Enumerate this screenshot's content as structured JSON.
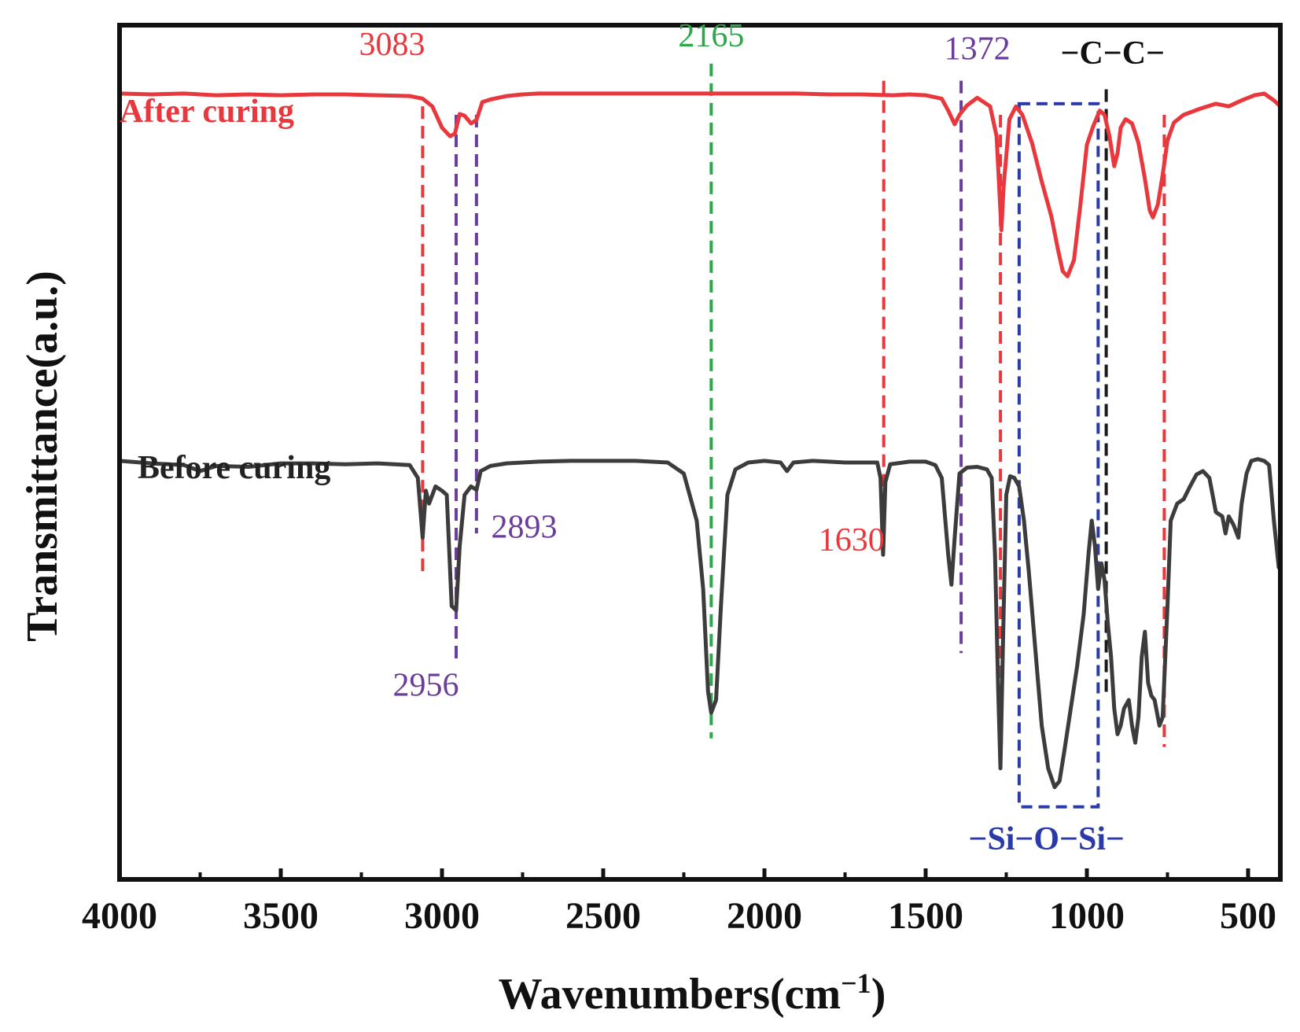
{
  "chart_data": {
    "type": "line",
    "xlabel_main": "Wavenumbers(cm",
    "xlabel_sup": "−1",
    "xlabel_close": ")",
    "ylabel": "Transmittance(a.u.)",
    "xlim": [
      4000,
      400
    ],
    "x_reversed": true,
    "y_axis_ticks_shown": false,
    "grid": false,
    "xticks": [
      4000,
      3500,
      3000,
      2500,
      2000,
      1500,
      1000,
      500
    ],
    "series": [
      {
        "name": "After curing",
        "color": "#e8383d",
        "baseline": 0.92,
        "points": [
          [
            4000,
            0.92
          ],
          [
            3900,
            0.919
          ],
          [
            3800,
            0.92
          ],
          [
            3700,
            0.918
          ],
          [
            3600,
            0.919
          ],
          [
            3500,
            0.918
          ],
          [
            3400,
            0.919
          ],
          [
            3300,
            0.919
          ],
          [
            3200,
            0.918
          ],
          [
            3100,
            0.917
          ],
          [
            3060,
            0.914
          ],
          [
            3030,
            0.905
          ],
          [
            3000,
            0.88
          ],
          [
            2975,
            0.87
          ],
          [
            2960,
            0.873
          ],
          [
            2945,
            0.896
          ],
          [
            2930,
            0.894
          ],
          [
            2910,
            0.885
          ],
          [
            2893,
            0.889
          ],
          [
            2875,
            0.91
          ],
          [
            2850,
            0.913
          ],
          [
            2800,
            0.917
          ],
          [
            2750,
            0.919
          ],
          [
            2700,
            0.92
          ],
          [
            2600,
            0.92
          ],
          [
            2500,
            0.92
          ],
          [
            2400,
            0.92
          ],
          [
            2300,
            0.92
          ],
          [
            2200,
            0.92
          ],
          [
            2100,
            0.92
          ],
          [
            2000,
            0.92
          ],
          [
            1900,
            0.92
          ],
          [
            1800,
            0.919
          ],
          [
            1700,
            0.919
          ],
          [
            1600,
            0.918
          ],
          [
            1550,
            0.919
          ],
          [
            1500,
            0.918
          ],
          [
            1450,
            0.914
          ],
          [
            1430,
            0.9
          ],
          [
            1410,
            0.884
          ],
          [
            1395,
            0.895
          ],
          [
            1372,
            0.906
          ],
          [
            1340,
            0.915
          ],
          [
            1300,
            0.905
          ],
          [
            1280,
            0.87
          ],
          [
            1265,
            0.76
          ],
          [
            1258,
            0.812
          ],
          [
            1240,
            0.89
          ],
          [
            1220,
            0.905
          ],
          [
            1200,
            0.895
          ],
          [
            1170,
            0.862
          ],
          [
            1140,
            0.817
          ],
          [
            1110,
            0.776
          ],
          [
            1090,
            0.738
          ],
          [
            1075,
            0.712
          ],
          [
            1060,
            0.706
          ],
          [
            1040,
            0.725
          ],
          [
            1020,
            0.79
          ],
          [
            1000,
            0.86
          ],
          [
            980,
            0.882
          ],
          [
            960,
            0.9
          ],
          [
            945,
            0.895
          ],
          [
            930,
            0.87
          ],
          [
            915,
            0.835
          ],
          [
            905,
            0.85
          ],
          [
            895,
            0.88
          ],
          [
            880,
            0.89
          ],
          [
            860,
            0.885
          ],
          [
            840,
            0.862
          ],
          [
            820,
            0.82
          ],
          [
            805,
            0.783
          ],
          [
            795,
            0.775
          ],
          [
            780,
            0.79
          ],
          [
            765,
            0.825
          ],
          [
            750,
            0.865
          ],
          [
            730,
            0.886
          ],
          [
            700,
            0.895
          ],
          [
            650,
            0.902
          ],
          [
            600,
            0.908
          ],
          [
            560,
            0.905
          ],
          [
            520,
            0.912
          ],
          [
            480,
            0.918
          ],
          [
            450,
            0.92
          ],
          [
            420,
            0.912
          ],
          [
            400,
            0.905
          ]
        ]
      },
      {
        "name": "Before curing",
        "color": "#3c3c3c",
        "baseline": 0.49,
        "points": [
          [
            4000,
            0.49
          ],
          [
            3900,
            0.487
          ],
          [
            3800,
            0.485
          ],
          [
            3750,
            0.478
          ],
          [
            3700,
            0.484
          ],
          [
            3600,
            0.483
          ],
          [
            3500,
            0.487
          ],
          [
            3400,
            0.487
          ],
          [
            3300,
            0.486
          ],
          [
            3200,
            0.487
          ],
          [
            3100,
            0.485
          ],
          [
            3075,
            0.47
          ],
          [
            3060,
            0.4
          ],
          [
            3050,
            0.455
          ],
          [
            3040,
            0.44
          ],
          [
            3020,
            0.46
          ],
          [
            3000,
            0.455
          ],
          [
            2985,
            0.45
          ],
          [
            2970,
            0.32
          ],
          [
            2956,
            0.315
          ],
          [
            2945,
            0.39
          ],
          [
            2930,
            0.45
          ],
          [
            2910,
            0.46
          ],
          [
            2893,
            0.456
          ],
          [
            2880,
            0.478
          ],
          [
            2850,
            0.484
          ],
          [
            2800,
            0.487
          ],
          [
            2700,
            0.489
          ],
          [
            2600,
            0.49
          ],
          [
            2500,
            0.49
          ],
          [
            2400,
            0.49
          ],
          [
            2300,
            0.488
          ],
          [
            2250,
            0.475
          ],
          [
            2210,
            0.42
          ],
          [
            2190,
            0.34
          ],
          [
            2175,
            0.22
          ],
          [
            2165,
            0.195
          ],
          [
            2150,
            0.21
          ],
          [
            2135,
            0.32
          ],
          [
            2115,
            0.45
          ],
          [
            2090,
            0.48
          ],
          [
            2050,
            0.488
          ],
          [
            2000,
            0.49
          ],
          [
            1950,
            0.488
          ],
          [
            1930,
            0.478
          ],
          [
            1910,
            0.488
          ],
          [
            1850,
            0.49
          ],
          [
            1800,
            0.489
          ],
          [
            1750,
            0.488
          ],
          [
            1700,
            0.488
          ],
          [
            1650,
            0.488
          ],
          [
            1640,
            0.47
          ],
          [
            1632,
            0.38
          ],
          [
            1625,
            0.465
          ],
          [
            1610,
            0.486
          ],
          [
            1550,
            0.489
          ],
          [
            1500,
            0.489
          ],
          [
            1470,
            0.485
          ],
          [
            1450,
            0.47
          ],
          [
            1430,
            0.38
          ],
          [
            1420,
            0.345
          ],
          [
            1410,
            0.4
          ],
          [
            1395,
            0.475
          ],
          [
            1372,
            0.482
          ],
          [
            1340,
            0.483
          ],
          [
            1310,
            0.48
          ],
          [
            1295,
            0.47
          ],
          [
            1285,
            0.38
          ],
          [
            1275,
            0.22
          ],
          [
            1268,
            0.13
          ],
          [
            1260,
            0.28
          ],
          [
            1250,
            0.45
          ],
          [
            1238,
            0.472
          ],
          [
            1225,
            0.47
          ],
          [
            1210,
            0.46
          ],
          [
            1195,
            0.42
          ],
          [
            1180,
            0.36
          ],
          [
            1160,
            0.27
          ],
          [
            1140,
            0.18
          ],
          [
            1120,
            0.13
          ],
          [
            1100,
            0.108
          ],
          [
            1085,
            0.115
          ],
          [
            1070,
            0.15
          ],
          [
            1050,
            0.2
          ],
          [
            1030,
            0.25
          ],
          [
            1010,
            0.31
          ],
          [
            995,
            0.38
          ],
          [
            985,
            0.42
          ],
          [
            975,
            0.39
          ],
          [
            965,
            0.34
          ],
          [
            955,
            0.37
          ],
          [
            945,
            0.35
          ],
          [
            935,
            0.3
          ],
          [
            925,
            0.26
          ],
          [
            915,
            0.2
          ],
          [
            905,
            0.17
          ],
          [
            895,
            0.18
          ],
          [
            885,
            0.2
          ],
          [
            870,
            0.21
          ],
          [
            860,
            0.18
          ],
          [
            850,
            0.16
          ],
          [
            840,
            0.19
          ],
          [
            830,
            0.26
          ],
          [
            820,
            0.29
          ],
          [
            810,
            0.23
          ],
          [
            800,
            0.215
          ],
          [
            790,
            0.21
          ],
          [
            775,
            0.18
          ],
          [
            765,
            0.19
          ],
          [
            750,
            0.32
          ],
          [
            740,
            0.42
          ],
          [
            720,
            0.44
          ],
          [
            700,
            0.445
          ],
          [
            680,
            0.46
          ],
          [
            660,
            0.474
          ],
          [
            640,
            0.478
          ],
          [
            620,
            0.47
          ],
          [
            600,
            0.43
          ],
          [
            580,
            0.425
          ],
          [
            570,
            0.405
          ],
          [
            560,
            0.425
          ],
          [
            545,
            0.415
          ],
          [
            530,
            0.4
          ],
          [
            520,
            0.44
          ],
          [
            505,
            0.475
          ],
          [
            490,
            0.49
          ],
          [
            470,
            0.492
          ],
          [
            450,
            0.49
          ],
          [
            435,
            0.485
          ],
          [
            420,
            0.42
          ],
          [
            405,
            0.365
          ],
          [
            400,
            0.38
          ]
        ]
      }
    ],
    "series_labels": [
      {
        "text": "After curing",
        "color": "#e8383d"
      },
      {
        "text": "Before curing",
        "color": "#222222"
      }
    ],
    "reference_lines": [
      {
        "x": 3060,
        "color": "#e8383d",
        "y_top": 0.905,
        "y_bottom": 0.355
      },
      {
        "x": 2956,
        "color": "#6a3d9a",
        "y_top": 0.895,
        "y_bottom": 0.255
      },
      {
        "x": 2893,
        "color": "#6a3d9a",
        "y_top": 0.895,
        "y_bottom": 0.405
      },
      {
        "x": 2165,
        "color": "#2aa84a",
        "y_top": 0.955,
        "y_bottom": 0.165
      },
      {
        "x": 1630,
        "color": "#e8383d",
        "y_top": 0.935,
        "y_bottom": 0.395
      },
      {
        "x": 1390,
        "color": "#6a3d9a",
        "y_top": 0.935,
        "y_bottom": 0.265
      },
      {
        "x": 1268,
        "color": "#e8383d",
        "y_top": 0.895,
        "y_bottom": 0.205
      },
      {
        "x": 940,
        "color": "#1a1a1a",
        "y_top": 0.925,
        "y_bottom": 0.215
      },
      {
        "x": 760,
        "color": "#e8383d",
        "y_top": 0.895,
        "y_bottom": 0.155
      }
    ],
    "annotations": [
      {
        "text": "3083",
        "color": "#e8383d",
        "x": 3155,
        "y": 0.965,
        "weight": "normal"
      },
      {
        "text": "2165",
        "color": "#2aa84a",
        "x": 2165,
        "y": 0.975,
        "weight": "normal"
      },
      {
        "text": "1372",
        "color": "#6a3d9a",
        "x": 1340,
        "y": 0.96,
        "weight": "normal"
      },
      {
        "text": "2956",
        "color": "#6a3d9a",
        "x": 3050,
        "y": 0.215,
        "weight": "normal"
      },
      {
        "text": "2893",
        "color": "#6a3d9a",
        "x": 2745,
        "y": 0.4,
        "weight": "normal"
      },
      {
        "text": "1630",
        "color": "#e8383d",
        "x": 1730,
        "y": 0.385,
        "weight": "normal"
      },
      {
        "text": "−C−C−",
        "color": "#111111",
        "x": 920,
        "y": 0.955,
        "weight": "bold"
      },
      {
        "text": "−Si−O−Si−",
        "color": "#2a3aa8",
        "x": 1125,
        "y": 0.035,
        "weight": "bold"
      }
    ],
    "highlight_box": {
      "x_from": 1210,
      "x_to": 965,
      "y_top": 0.908,
      "y_bottom": 0.085,
      "color": "#2a3aa8",
      "dashed": true
    }
  }
}
